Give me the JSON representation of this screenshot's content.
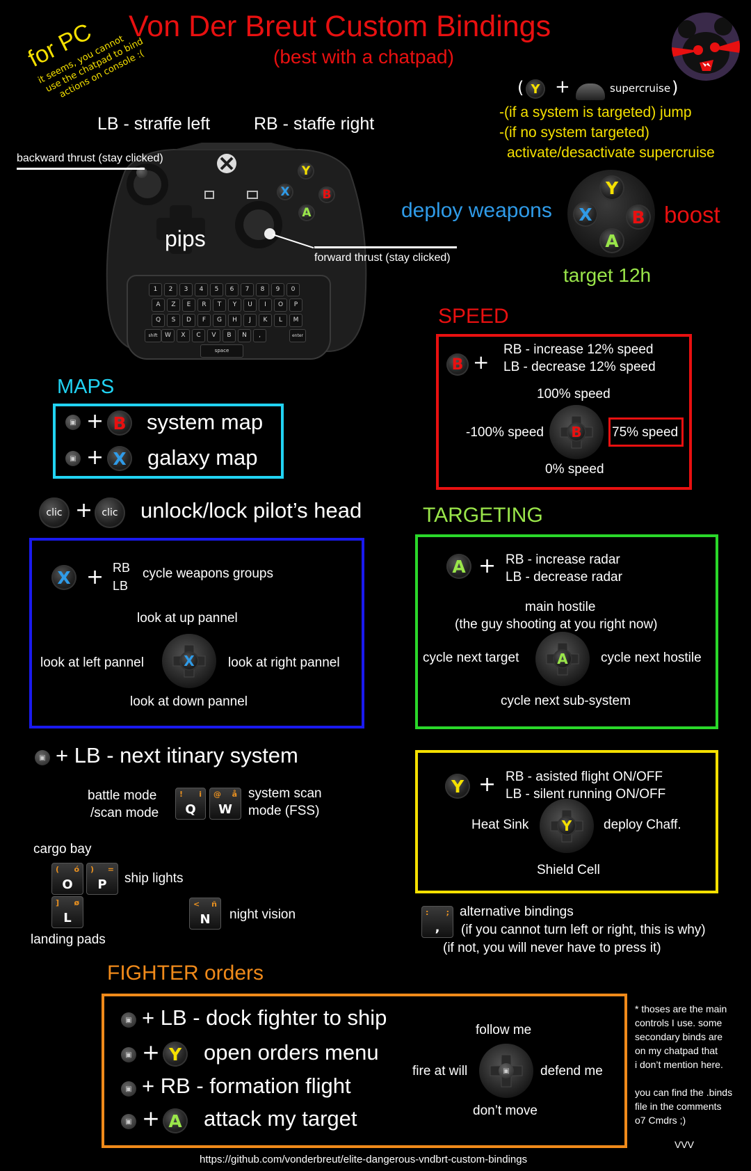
{
  "header": {
    "title": "Von Der Breut Custom Bindings",
    "subtitle": "(best with a chatpad)",
    "for_pc": "for PC",
    "console_note_1": "it seems, you cannot",
    "console_note_2": "use the chatpad to bind",
    "console_note_3": "actions on console :("
  },
  "controller": {
    "lb": "LB - straffe left",
    "rb": "RB - staffe right",
    "backward": "backward thrust (stay clicked)",
    "forward": "forward thrust (stay clicked)",
    "pips": "pips",
    "row1": [
      "1",
      "2",
      "3",
      "4",
      "5",
      "6",
      "7",
      "8",
      "9",
      "0"
    ],
    "row2": [
      "A",
      "Z",
      "E",
      "R",
      "T",
      "Y",
      "U",
      "I",
      "O",
      "P"
    ],
    "row3": [
      "Q",
      "S",
      "D",
      "F",
      "G",
      "H",
      "J",
      "K",
      "L",
      "M"
    ],
    "row4": [
      "shift",
      "W",
      "X",
      "C",
      "V",
      "B",
      "N",
      ",",
      "enter"
    ],
    "space": "space"
  },
  "supercruise": {
    "open": "(",
    "plus": "+",
    "label": "supercruise",
    "close": ")",
    "line1": "-(if a system is targeted) jump",
    "line2": "-(if no system targeted)",
    "line3": "activate/desactivate supercruise"
  },
  "face": {
    "deploy": "deploy weapons",
    "boost": "boost",
    "target": "target 12h",
    "y": "Y",
    "x": "X",
    "b": "B",
    "a": "A"
  },
  "speed": {
    "heading": "SPEED",
    "plus": "+",
    "rb": "RB - increase 12% speed",
    "lb": "LB - decrease 12% speed",
    "up": "100% speed",
    "left": "-100% speed",
    "right": "75% speed",
    "down": "0% speed",
    "b": "B"
  },
  "maps": {
    "heading": "MAPS",
    "plus": "+",
    "system": "system map",
    "galaxy": "galaxy map",
    "b": "B",
    "x": "X"
  },
  "head": {
    "clic": "clic",
    "plus": "+",
    "label": "unlock/lock pilot’s head"
  },
  "weapons": {
    "x": "X",
    "plus": "+",
    "rb": "RB",
    "lb": "LB",
    "cycle": "cycle weapons groups",
    "up": "look at up pannel",
    "left": "look at left pannel",
    "right": "look at right pannel",
    "down": "look at down pannel"
  },
  "targeting": {
    "heading": "TARGETING",
    "a": "A",
    "plus": "+",
    "rb": "RB - increase radar",
    "lb": "LB - decrease radar",
    "up1": "main hostile",
    "up2": "(the guy shooting at you right now)",
    "left": "cycle next target",
    "right": "cycle next hostile",
    "down": "cycle next sub-system"
  },
  "itinary": {
    "plus_lb": "+ LB - next itinary system",
    "battle1": "battle mode",
    "battle2": "/scan mode",
    "scan1": "system scan",
    "scan2": "mode (FSS)",
    "cargo": "cargo bay",
    "lights": "ship lights",
    "landing": "landing pads",
    "night": "night vision",
    "q": "Q",
    "q_s1": "!",
    "q_s2": "i",
    "w": "W",
    "w_s1": "@",
    "w_s2": "å",
    "o": "O",
    "o_s1": "(",
    "o_s2": "ó",
    "p": "P",
    "p_s1": ")",
    "p_s2": "=",
    "l": "L",
    "l_s1": "]",
    "l_s2": "ø",
    "n": "N",
    "n_s1": "<",
    "n_s2": "ñ"
  },
  "defense": {
    "y": "Y",
    "plus": "+",
    "rb": "RB - asisted flight ON/OFF",
    "lb": "LB - silent running ON/OFF",
    "left": "Heat Sink",
    "right": "deploy Chaff.",
    "down": "Shield Cell"
  },
  "alt": {
    "key_main": ",",
    "key_s1": ":",
    "key_s2": ";",
    "line1": "alternative bindings",
    "line2": "(if you cannot turn left or right, this is why)",
    "line3": "(if not, you will never have to press it)"
  },
  "fighter": {
    "heading": "FIGHTER orders",
    "dock": "+ LB - dock fighter to ship",
    "plus": "+",
    "orders": "open orders menu",
    "formation": "+ RB - formation flight",
    "attack": "attack my target",
    "y": "Y",
    "a": "A",
    "up": "follow me",
    "left": "fire at will",
    "right": "defend me",
    "down": "don’t move"
  },
  "notes": {
    "n1": "* thoses are the main",
    "n2": "controls I use. some",
    "n3": "secondary binds are",
    "n4": "on my chatpad that",
    "n5": "i don’t mention here.",
    "n6": "you can find the .binds",
    "n7": "file in the comments",
    "n8": "o7 Cmdrs ;)",
    "sig": "VVV"
  },
  "footer": {
    "url": "https://github.com/vonderbreut/elite-dangerous-vndbrt-custom-bindings"
  },
  "colors": {
    "red": "#e81010",
    "yellow": "#f5e000",
    "blue": "#2f9be8",
    "green": "#9ae64a",
    "cyan": "#21d3f3",
    "dblue": "#1a1aee",
    "lgreen": "#2ad82a",
    "orange": "#f08a1a"
  }
}
